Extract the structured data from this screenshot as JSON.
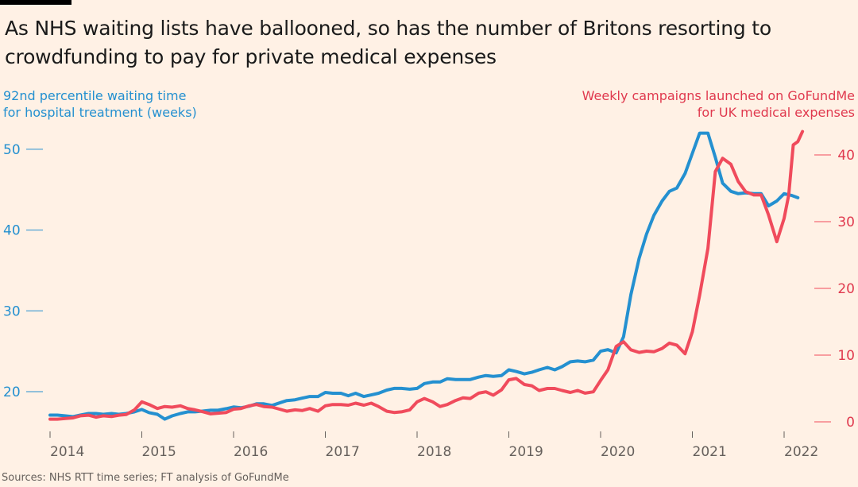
{
  "header": {
    "title": "As NHS waiting lists have ballooned, so has the number of Britons resorting to crowdfunding to pay for private medical expenses"
  },
  "footer": {
    "source": "Sources: NHS RTT time series; FT analysis of GoFundMe"
  },
  "colors": {
    "background": "#fff1e5",
    "waiting_time": "#2490d0",
    "campaigns": "#f04b5c",
    "campaigns_text": "#e0394e",
    "axis_text": "#66605c"
  },
  "chart_data": {
    "type": "line",
    "title": "As NHS waiting lists have ballooned, so has the number of Britons resorting to crowdfunding to pay for private medical expenses",
    "xlabel": "",
    "x_ticks": [
      "2014",
      "2015",
      "2016",
      "2017",
      "2018",
      "2019",
      "2020",
      "2021",
      "2022"
    ],
    "xlim": [
      2013.92,
      2022.25
    ],
    "left_axis": {
      "label_line1": "92nd percentile waiting time",
      "label_line2": "for hospital treatment (weeks)",
      "ticks": [
        "20",
        "30",
        "40",
        "50"
      ],
      "ylim": [
        17.5,
        53
      ]
    },
    "right_axis": {
      "label_line1": "Weekly campaigns launched on GoFundMe",
      "label_line2": "for UK medical expenses",
      "ticks": [
        "0",
        "10",
        "20",
        "30",
        "40"
      ],
      "ylim": [
        0,
        44.5
      ]
    },
    "series": [
      {
        "name": "92nd percentile waiting time for hospital treatment (weeks)",
        "axis": "left",
        "x": [
          2014.0,
          2014.08,
          2014.17,
          2014.25,
          2014.33,
          2014.42,
          2014.5,
          2014.58,
          2014.67,
          2014.75,
          2014.83,
          2014.92,
          2015.0,
          2015.08,
          2015.17,
          2015.25,
          2015.33,
          2015.42,
          2015.5,
          2015.58,
          2015.67,
          2015.75,
          2015.83,
          2015.92,
          2016.0,
          2016.08,
          2016.17,
          2016.25,
          2016.33,
          2016.42,
          2016.5,
          2016.58,
          2016.67,
          2016.75,
          2016.83,
          2016.92,
          2017.0,
          2017.08,
          2017.17,
          2017.25,
          2017.33,
          2017.42,
          2017.5,
          2017.58,
          2017.67,
          2017.75,
          2017.83,
          2017.92,
          2018.0,
          2018.08,
          2018.17,
          2018.25,
          2018.33,
          2018.42,
          2018.5,
          2018.58,
          2018.67,
          2018.75,
          2018.83,
          2018.92,
          2019.0,
          2019.08,
          2019.17,
          2019.25,
          2019.33,
          2019.42,
          2019.5,
          2019.58,
          2019.67,
          2019.75,
          2019.83,
          2019.92,
          2020.0,
          2020.08,
          2020.17,
          2020.25,
          2020.33,
          2020.42,
          2020.5,
          2020.58,
          2020.67,
          2020.75,
          2020.83,
          2020.92,
          2021.0,
          2021.08,
          2021.17,
          2021.25,
          2021.33,
          2021.42,
          2021.5,
          2021.58,
          2021.67,
          2021.75,
          2021.83,
          2021.92,
          2022.0,
          2022.08,
          2022.15
        ],
        "values": [
          17.1,
          17.1,
          17.0,
          16.9,
          17.1,
          17.3,
          17.3,
          17.2,
          17.3,
          17.2,
          17.3,
          17.5,
          17.8,
          17.4,
          17.2,
          16.6,
          17.0,
          17.3,
          17.5,
          17.5,
          17.6,
          17.7,
          17.7,
          17.9,
          18.1,
          18.0,
          18.2,
          18.5,
          18.5,
          18.3,
          18.6,
          18.9,
          19.0,
          19.2,
          19.4,
          19.4,
          19.9,
          19.8,
          19.8,
          19.5,
          19.8,
          19.4,
          19.6,
          19.8,
          20.2,
          20.4,
          20.4,
          20.3,
          20.4,
          21.0,
          21.2,
          21.2,
          21.6,
          21.5,
          21.5,
          21.5,
          21.8,
          22.0,
          21.9,
          22.0,
          22.7,
          22.5,
          22.2,
          22.4,
          22.7,
          23.0,
          22.7,
          23.1,
          23.7,
          23.8,
          23.7,
          23.9,
          25.0,
          25.2,
          24.8,
          26.8,
          32.0,
          36.5,
          39.5,
          41.8,
          43.6,
          44.8,
          45.2,
          47.0,
          49.5,
          52.0,
          52.0,
          49.0,
          45.8,
          44.8,
          44.5,
          44.6,
          44.5,
          44.5,
          43.0,
          43.6,
          44.5,
          44.3,
          44.0
        ]
      },
      {
        "name": "Weekly campaigns launched on GoFundMe for UK medical expenses",
        "axis": "right",
        "x": [
          2014.0,
          2014.08,
          2014.17,
          2014.25,
          2014.33,
          2014.42,
          2014.5,
          2014.58,
          2014.67,
          2014.75,
          2014.83,
          2014.92,
          2015.0,
          2015.08,
          2015.17,
          2015.25,
          2015.33,
          2015.42,
          2015.5,
          2015.58,
          2015.67,
          2015.75,
          2015.83,
          2015.92,
          2016.0,
          2016.08,
          2016.17,
          2016.25,
          2016.33,
          2016.42,
          2016.5,
          2016.58,
          2016.67,
          2016.75,
          2016.83,
          2016.92,
          2017.0,
          2017.08,
          2017.17,
          2017.25,
          2017.33,
          2017.42,
          2017.5,
          2017.58,
          2017.67,
          2017.75,
          2017.83,
          2017.92,
          2018.0,
          2018.08,
          2018.17,
          2018.25,
          2018.33,
          2018.42,
          2018.5,
          2018.58,
          2018.67,
          2018.75,
          2018.83,
          2018.92,
          2019.0,
          2019.08,
          2019.17,
          2019.25,
          2019.33,
          2019.42,
          2019.5,
          2019.58,
          2019.67,
          2019.75,
          2019.83,
          2019.92,
          2020.0,
          2020.08,
          2020.17,
          2020.25,
          2020.33,
          2020.42,
          2020.5,
          2020.58,
          2020.67,
          2020.75,
          2020.83,
          2020.92,
          2021.0,
          2021.08,
          2021.17,
          2021.25,
          2021.33,
          2021.42,
          2021.5,
          2021.58,
          2021.67,
          2021.75,
          2021.83,
          2021.92,
          2022.0,
          2022.05,
          2022.1,
          2022.15,
          2022.2
        ],
        "values": [
          0.4,
          0.4,
          0.5,
          0.6,
          0.9,
          1.0,
          0.7,
          0.9,
          0.8,
          1.0,
          1.1,
          1.8,
          3.0,
          2.6,
          2.0,
          2.3,
          2.2,
          2.4,
          2.0,
          1.8,
          1.5,
          1.2,
          1.3,
          1.4,
          1.9,
          2.0,
          2.4,
          2.6,
          2.3,
          2.2,
          1.9,
          1.6,
          1.8,
          1.7,
          2.0,
          1.6,
          2.4,
          2.6,
          2.6,
          2.5,
          2.8,
          2.5,
          2.8,
          2.3,
          1.6,
          1.4,
          1.5,
          1.8,
          3.0,
          3.5,
          3.0,
          2.3,
          2.6,
          3.2,
          3.6,
          3.5,
          4.3,
          4.5,
          4.0,
          4.8,
          6.3,
          6.5,
          5.6,
          5.4,
          4.7,
          5.0,
          5.0,
          4.7,
          4.4,
          4.7,
          4.3,
          4.5,
          6.2,
          7.8,
          11.3,
          12.0,
          10.8,
          10.4,
          10.6,
          10.5,
          11.0,
          11.8,
          11.5,
          10.2,
          13.5,
          19.0,
          26.0,
          37.5,
          39.5,
          38.6,
          36.0,
          34.5,
          34.0,
          34.0,
          31.0,
          27.0,
          30.5,
          34.0,
          41.5,
          42.0,
          43.5
        ]
      }
    ],
    "grid": false,
    "legend": "direct labels at top-left (blue) and top-right (red)"
  }
}
